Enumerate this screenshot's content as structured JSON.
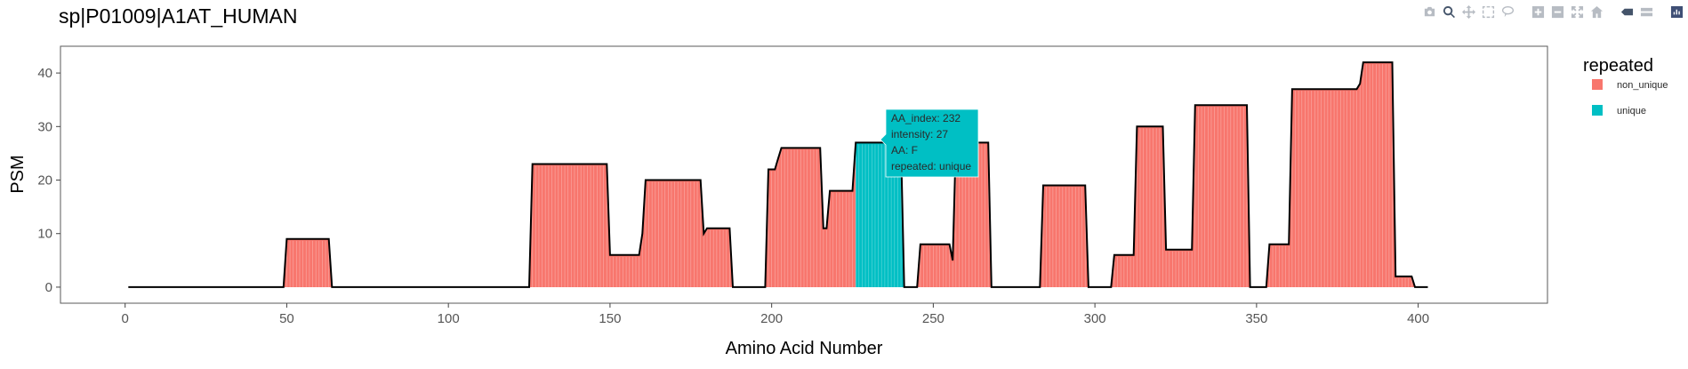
{
  "title": "sp|P01009|A1AT_HUMAN",
  "toolbar": {
    "icons": [
      "camera-icon",
      "zoom-icon",
      "pan-icon",
      "box-select-icon",
      "lasso-icon",
      "zoom-in-icon",
      "zoom-out-icon",
      "autoscale-icon",
      "reset-axes-icon",
      "spike-lines-icon",
      "compare-hover-icon",
      "plotly-logo-icon"
    ]
  },
  "legend": {
    "title": "repeated",
    "items": [
      {
        "label": "non_unique",
        "color": "#F8766D"
      },
      {
        "label": "unique",
        "color": "#00BFC4"
      }
    ]
  },
  "tooltip": {
    "lines": [
      "AA_index: 232",
      "intensity: 27",
      "AA: F",
      "repeated: unique"
    ],
    "color": "#00BFC4"
  },
  "chart_data": {
    "type": "area",
    "title": "sp|P01009|A1AT_HUMAN",
    "xlabel": "Amino Acid Number",
    "ylabel": "PSM",
    "xlim": [
      -20,
      440
    ],
    "ylim": [
      -3,
      45
    ],
    "xticks": [
      0,
      50,
      100,
      150,
      200,
      250,
      300,
      350,
      400
    ],
    "yticks": [
      0,
      10,
      20,
      30,
      40
    ],
    "grid": false,
    "legend_position": "right",
    "series": [
      {
        "name": "non_unique",
        "color": "#F8766D"
      },
      {
        "name": "unique",
        "color": "#00BFC4"
      }
    ],
    "profile": [
      [
        1,
        0
      ],
      [
        49,
        0
      ],
      [
        50,
        9
      ],
      [
        63,
        9
      ],
      [
        64,
        0
      ],
      [
        125,
        0
      ],
      [
        126,
        23
      ],
      [
        149,
        23
      ],
      [
        150,
        6
      ],
      [
        159,
        6
      ],
      [
        160,
        10
      ],
      [
        161,
        20
      ],
      [
        178,
        20
      ],
      [
        179,
        10
      ],
      [
        180,
        11
      ],
      [
        187,
        11
      ],
      [
        188,
        0
      ],
      [
        198,
        0
      ],
      [
        199,
        22
      ],
      [
        201,
        22
      ],
      [
        202,
        24
      ],
      [
        203,
        26
      ],
      [
        215,
        26
      ],
      [
        216,
        11
      ],
      [
        217,
        11
      ],
      [
        218,
        18
      ],
      [
        225,
        18
      ],
      [
        226,
        27
      ],
      [
        240,
        27
      ],
      [
        241,
        0
      ],
      [
        245,
        0
      ],
      [
        246,
        8
      ],
      [
        255,
        8
      ],
      [
        256,
        5
      ],
      [
        257,
        27
      ],
      [
        260,
        27
      ],
      [
        261,
        27
      ],
      [
        267,
        27
      ],
      [
        268,
        0
      ],
      [
        283,
        0
      ],
      [
        284,
        19
      ],
      [
        297,
        19
      ],
      [
        298,
        0
      ],
      [
        305,
        0
      ],
      [
        306,
        6
      ],
      [
        312,
        6
      ],
      [
        313,
        30
      ],
      [
        321,
        30
      ],
      [
        322,
        7
      ],
      [
        330,
        7
      ],
      [
        331,
        34
      ],
      [
        347,
        34
      ],
      [
        348,
        0
      ],
      [
        353,
        0
      ],
      [
        354,
        8
      ],
      [
        360,
        8
      ],
      [
        361,
        37
      ],
      [
        381,
        37
      ],
      [
        382,
        38
      ],
      [
        383,
        42
      ],
      [
        392,
        42
      ],
      [
        393,
        2
      ],
      [
        398,
        2
      ],
      [
        399,
        0
      ],
      [
        403,
        0
      ]
    ],
    "unique_range": [
      226,
      241
    ]
  }
}
